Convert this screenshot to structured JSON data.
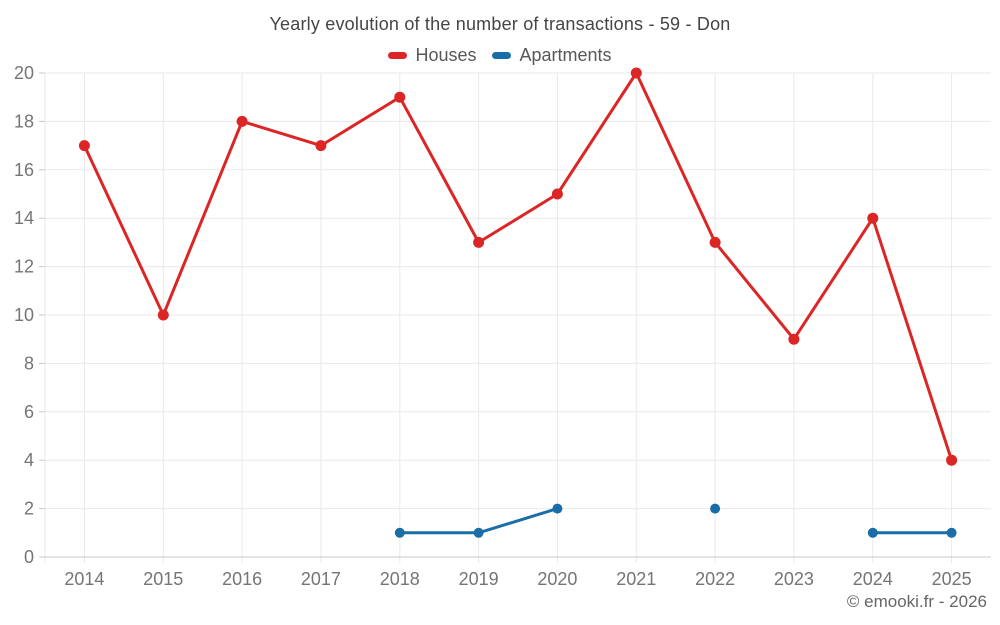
{
  "header": {
    "title": "Yearly evolution of the number of transactions - 59 - Don"
  },
  "footer": {
    "credit": "© emooki.fr - 2026"
  },
  "chart_data": {
    "type": "line",
    "title": "Yearly evolution of the number of transactions - 59 - Don",
    "categories": [
      "2014",
      "2015",
      "2016",
      "2017",
      "2018",
      "2019",
      "2020",
      "2021",
      "2022",
      "2023",
      "2024",
      "2025"
    ],
    "series": [
      {
        "name": "Houses",
        "color": "#dc2626",
        "values": [
          17,
          10,
          18,
          17,
          19,
          13,
          15,
          20,
          13,
          9,
          14,
          4
        ]
      },
      {
        "name": "Apartments",
        "color": "#1a6ea8",
        "values": [
          null,
          null,
          null,
          null,
          1,
          1,
          2,
          null,
          2,
          null,
          1,
          1
        ]
      }
    ],
    "xlabel": "",
    "ylabel": "",
    "ylim": [
      0,
      20
    ],
    "ytick_step": 2,
    "grid": true,
    "legend_position": "top",
    "grid_color": "#e9e9e9",
    "axis_line_color": "#c9c9c9",
    "tick_label_color": "#757575"
  }
}
